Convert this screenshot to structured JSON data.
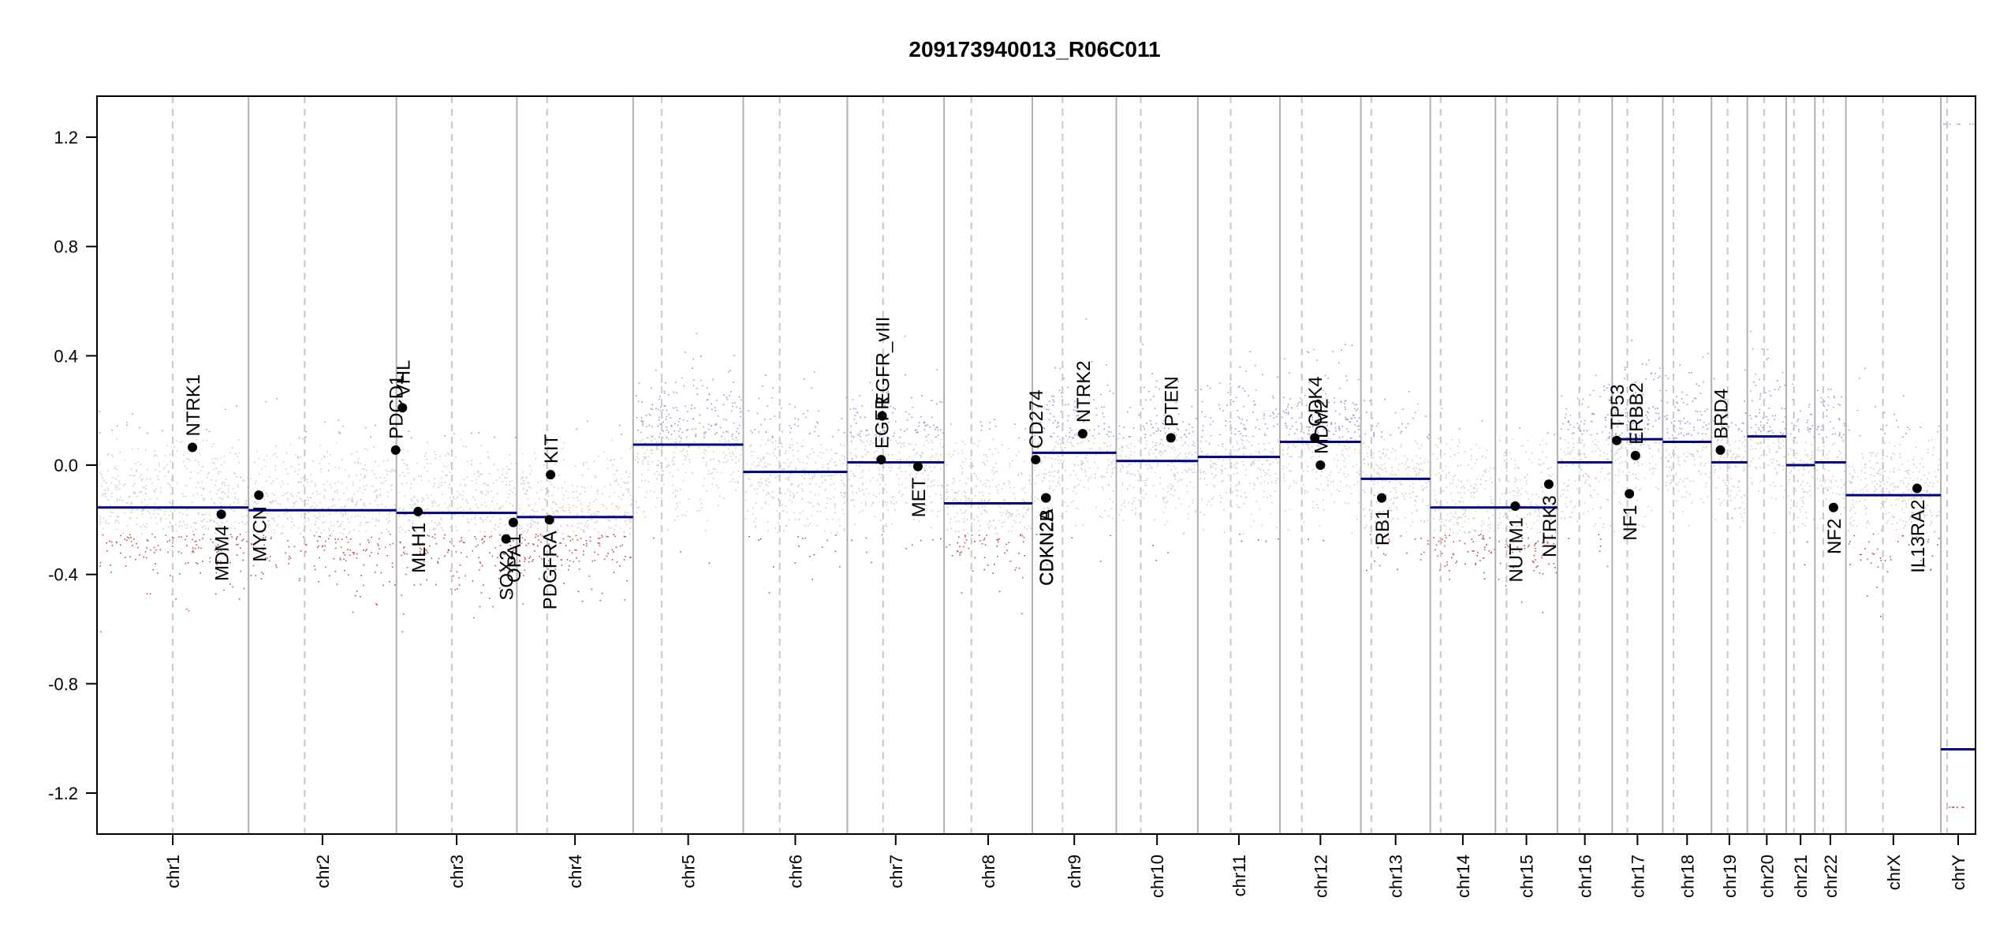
{
  "chart_data": {
    "type": "scatter",
    "title": "209173940013_R06C011",
    "xlabel": "",
    "ylabel": "",
    "ylim": [
      -1.35,
      1.35
    ],
    "yticks": [
      "1.2",
      "0.8",
      "0.4",
      "0.0",
      "-0.4",
      "-0.8",
      "-1.2"
    ],
    "grid": false,
    "colors": {
      "segment": "#00008b",
      "gain_probe": "#6b6bd6",
      "loss_probe": "#b22222",
      "neutral_probe": "#a0a0a0",
      "chrom_divider": "#b0b0b0",
      "centromere": "#c8c8c8"
    },
    "chromosomes": [
      {
        "name": "chr1",
        "size": 249,
        "centromere": 0.5,
        "segment": -0.155
      },
      {
        "name": "chr2",
        "size": 243,
        "centromere": 0.38,
        "segment": -0.165
      },
      {
        "name": "chr3",
        "size": 198,
        "centromere": 0.46,
        "segment": -0.175
      },
      {
        "name": "chr4",
        "size": 191,
        "centromere": 0.26,
        "segment": -0.19
      },
      {
        "name": "chr5",
        "size": 181,
        "centromere": 0.26,
        "segment": 0.075
      },
      {
        "name": "chr6",
        "size": 171,
        "centromere": 0.35,
        "segment": -0.025
      },
      {
        "name": "chr7",
        "size": 159,
        "centromere": 0.37,
        "segment": 0.01
      },
      {
        "name": "chr8",
        "size": 145,
        "centromere": 0.31,
        "segment": -0.14
      },
      {
        "name": "chr9",
        "size": 138,
        "centromere": 0.36,
        "segment": 0.045
      },
      {
        "name": "chr10",
        "size": 134,
        "centromere": 0.3,
        "segment": 0.015
      },
      {
        "name": "chr11",
        "size": 135,
        "centromere": 0.4,
        "segment": 0.03
      },
      {
        "name": "chr12",
        "size": 133,
        "centromere": 0.27,
        "segment": 0.085
      },
      {
        "name": "chr13",
        "size": 114,
        "centromere": 0.15,
        "segment": -0.05
      },
      {
        "name": "chr14",
        "size": 107,
        "centromere": 0.16,
        "segment": -0.155
      },
      {
        "name": "chr15",
        "size": 102,
        "centromere": 0.18,
        "segment": -0.155
      },
      {
        "name": "chr16",
        "size": 90,
        "centromere": 0.4,
        "segment": 0.01
      },
      {
        "name": "chr17",
        "size": 83,
        "centromere": 0.3,
        "segment": 0.095
      },
      {
        "name": "chr18",
        "size": 80,
        "centromere": 0.22,
        "segment": 0.085
      },
      {
        "name": "chr19",
        "size": 59,
        "centromere": 0.45,
        "segment": 0.01
      },
      {
        "name": "chr20",
        "size": 64,
        "centromere": 0.43,
        "segment": 0.105
      },
      {
        "name": "chr21",
        "size": 47,
        "centromere": 0.27,
        "segment": 0.0
      },
      {
        "name": "chr22",
        "size": 51,
        "centromere": 0.27,
        "segment": 0.01
      },
      {
        "name": "chrX",
        "size": 156,
        "centromere": 0.39,
        "segment": -0.11
      },
      {
        "name": "chrY",
        "size": 57,
        "centromere": 0.18,
        "segment": -1.04
      }
    ],
    "genes": [
      {
        "name": "NTRK1",
        "chr": "chr1",
        "pos": 0.63,
        "value": 0.065,
        "label_side": "above"
      },
      {
        "name": "MDM4",
        "chr": "chr1",
        "pos": 0.82,
        "value": -0.18,
        "label_side": "below"
      },
      {
        "name": "MYCN",
        "chr": "chr2",
        "pos": 0.07,
        "value": -0.11,
        "label_side": "below"
      },
      {
        "name": "PDCD1",
        "chr": "chr2",
        "pos": 0.995,
        "value": 0.055,
        "label_side": "above"
      },
      {
        "name": "VHL",
        "chr": "chr3",
        "pos": 0.05,
        "value": 0.21,
        "label_side": "above"
      },
      {
        "name": "MLH1",
        "chr": "chr3",
        "pos": 0.18,
        "value": -0.17,
        "label_side": "below"
      },
      {
        "name": "SOX2",
        "chr": "chr3",
        "pos": 0.91,
        "value": -0.27,
        "label_side": "below"
      },
      {
        "name": "OPA1",
        "chr": "chr3",
        "pos": 0.97,
        "value": -0.21,
        "label_side": "below"
      },
      {
        "name": "PDGFRA",
        "chr": "chr4",
        "pos": 0.28,
        "value": -0.2,
        "label_side": "below"
      },
      {
        "name": "KIT",
        "chr": "chr4",
        "pos": 0.29,
        "value": -0.035,
        "label_side": "above"
      },
      {
        "name": "EGFR",
        "chr": "chr7",
        "pos": 0.35,
        "value": 0.02,
        "label_side": "above"
      },
      {
        "name": "EGFR_vIII",
        "chr": "chr7",
        "pos": 0.36,
        "value": 0.18,
        "label_side": "above"
      },
      {
        "name": "MET",
        "chr": "chr7",
        "pos": 0.73,
        "value": -0.005,
        "label_side": "below"
      },
      {
        "name": "CD274",
        "chr": "chr9",
        "pos": 0.04,
        "value": 0.02,
        "label_side": "above"
      },
      {
        "name": "CDKN2A",
        "chr": "chr9",
        "pos": 0.16,
        "value": -0.12,
        "label_side": "below"
      },
      {
        "name": "CDKN2B",
        "chr": "chr9",
        "pos": 0.165,
        "value": -0.12,
        "label_side": "below"
      },
      {
        "name": "NTRK2",
        "chr": "chr9",
        "pos": 0.6,
        "value": 0.115,
        "label_side": "above"
      },
      {
        "name": "PTEN",
        "chr": "chr10",
        "pos": 0.67,
        "value": 0.1,
        "label_side": "above"
      },
      {
        "name": "CDK4",
        "chr": "chr12",
        "pos": 0.43,
        "value": 0.1,
        "label_side": "above"
      },
      {
        "name": "MDM2",
        "chr": "chr12",
        "pos": 0.5,
        "value": 0.0,
        "label_side": "above"
      },
      {
        "name": "RB1",
        "chr": "chr13",
        "pos": 0.3,
        "value": -0.12,
        "label_side": "below"
      },
      {
        "name": "NUTM1",
        "chr": "chr15",
        "pos": 0.32,
        "value": -0.15,
        "label_side": "below"
      },
      {
        "name": "NTRK3",
        "chr": "chr15",
        "pos": 0.86,
        "value": -0.07,
        "label_side": "below"
      },
      {
        "name": "TP53",
        "chr": "chr17",
        "pos": 0.09,
        "value": 0.09,
        "label_side": "above"
      },
      {
        "name": "NF1",
        "chr": "chr17",
        "pos": 0.34,
        "value": -0.105,
        "label_side": "below"
      },
      {
        "name": "ERBB2",
        "chr": "chr17",
        "pos": 0.46,
        "value": 0.035,
        "label_side": "above"
      },
      {
        "name": "BRD4",
        "chr": "chr19",
        "pos": 0.25,
        "value": 0.055,
        "label_side": "above"
      },
      {
        "name": "NF2",
        "chr": "chr22",
        "pos": 0.6,
        "value": -0.155,
        "label_side": "below"
      },
      {
        "name": "IL13RA2",
        "chr": "chrX",
        "pos": 0.75,
        "value": -0.085,
        "label_side": "below"
      }
    ]
  }
}
